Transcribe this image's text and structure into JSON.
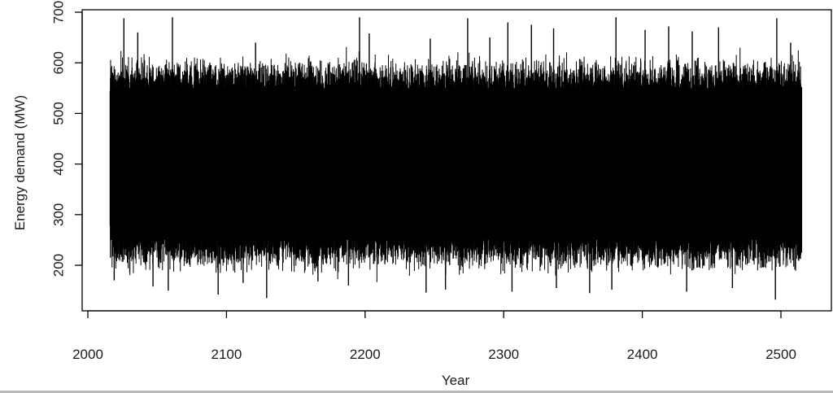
{
  "chart_data": {
    "type": "line",
    "title": "",
    "xlabel": "Year",
    "ylabel": "Energy demand (MW)",
    "xlim": [
      2015,
      2515
    ],
    "ylim": [
      130,
      700
    ],
    "x_ticks": [
      2000,
      2100,
      2200,
      2300,
      2400,
      2500
    ],
    "x_tick_labels": [
      "2000",
      "2100",
      "2200",
      "2300",
      "2400",
      "2500"
    ],
    "y_ticks": [
      200,
      300,
      400,
      500,
      600,
      700
    ],
    "y_tick_labels": [
      "200",
      "300",
      "400",
      "500",
      "600",
      "700"
    ],
    "grid": false,
    "legend": "none",
    "line_color": "#000000",
    "series": [
      {
        "x_start": 2016,
        "x_end": 2515,
        "typical_min": 230,
        "typical_max": 570,
        "center": 400,
        "max_spikes": [
          [
            2026,
            688
          ],
          [
            2036,
            660
          ],
          [
            2061,
            690
          ],
          [
            2088,
            600
          ],
          [
            2121,
            640
          ],
          [
            2196,
            690
          ],
          [
            2203,
            658
          ],
          [
            2247,
            648
          ],
          [
            2274,
            688
          ],
          [
            2290,
            650
          ],
          [
            2303,
            680
          ],
          [
            2320,
            675
          ],
          [
            2336,
            668
          ],
          [
            2381,
            690
          ],
          [
            2402,
            665
          ],
          [
            2419,
            672
          ],
          [
            2436,
            662
          ],
          [
            2455,
            670
          ],
          [
            2497,
            688
          ],
          [
            2507,
            640
          ]
        ],
        "min_spikes": [
          [
            2019,
            170
          ],
          [
            2047,
            158
          ],
          [
            2058,
            150
          ],
          [
            2094,
            142
          ],
          [
            2112,
            165
          ],
          [
            2129,
            135
          ],
          [
            2166,
            168
          ],
          [
            2188,
            160
          ],
          [
            2244,
            146
          ],
          [
            2258,
            152
          ],
          [
            2306,
            148
          ],
          [
            2338,
            155
          ],
          [
            2362,
            145
          ],
          [
            2378,
            152
          ],
          [
            2432,
            148
          ],
          [
            2465,
            155
          ],
          [
            2496,
            132
          ]
        ]
      }
    ]
  }
}
